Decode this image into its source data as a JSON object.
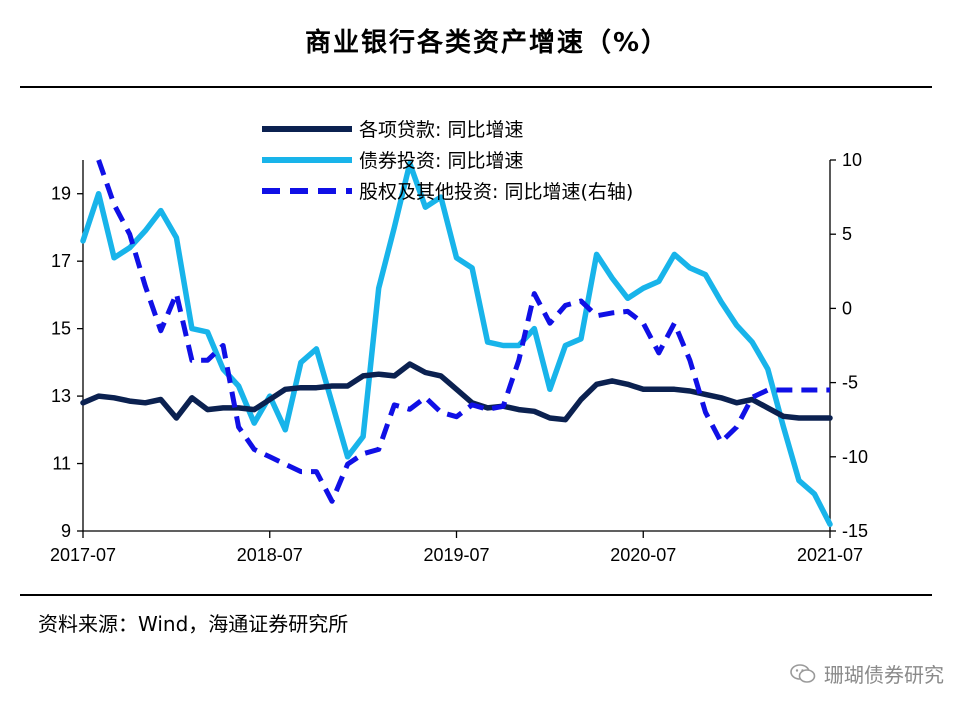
{
  "header": {
    "title": "商业银行各类资产增速（%）"
  },
  "footer": {
    "source": "资料来源：Wind，海通证券研究所",
    "watermark": "珊瑚债券研究"
  },
  "colors": {
    "loans": "#0b2150",
    "bonds": "#18b4ea",
    "equity": "#1010e6",
    "axis": "#000000"
  },
  "chart_data": {
    "type": "line",
    "title": "商业银行各类资产增速（%）",
    "xlabel": "",
    "ylabel": "",
    "x_ticks": [
      "2017-07",
      "2018-07",
      "2019-07",
      "2020-07",
      "2021-07"
    ],
    "x_range": [
      "2017-07",
      "2021-07"
    ],
    "ylim_left": [
      9,
      20
    ],
    "yticks_left": [
      "9",
      "11",
      "13",
      "15",
      "17",
      "19"
    ],
    "ylim_right": [
      -15,
      10
    ],
    "yticks_right": [
      "-15",
      "-10",
      "-5",
      "0",
      "5",
      "10"
    ],
    "legend_position": "top-center",
    "series": [
      {
        "name": "各项贷款: 同比增速",
        "axis": "left",
        "style": "solid",
        "color_key": "loans",
        "x": [
          0,
          1,
          2,
          3,
          4,
          5,
          6,
          7,
          8,
          9,
          10,
          11,
          12,
          13,
          14,
          15,
          16,
          17,
          18,
          19,
          20,
          21,
          22,
          23,
          24,
          25,
          26,
          27,
          28,
          29,
          30,
          31,
          32,
          33,
          34,
          35,
          36,
          37,
          38,
          39,
          40,
          41,
          42,
          43,
          44,
          45,
          46,
          47,
          48
        ],
        "values": [
          12.8,
          13.0,
          12.95,
          12.85,
          12.8,
          12.9,
          12.35,
          12.95,
          12.6,
          12.65,
          12.65,
          12.6,
          12.9,
          13.2,
          13.25,
          13.25,
          13.3,
          13.3,
          13.6,
          13.65,
          13.6,
          13.95,
          13.7,
          13.6,
          13.2,
          12.8,
          12.65,
          12.7,
          12.6,
          12.55,
          12.35,
          12.3,
          12.9,
          13.35,
          13.45,
          13.35,
          13.2,
          13.2,
          13.2,
          13.15,
          13.05,
          12.95,
          12.8,
          12.9,
          12.65,
          12.4,
          12.35,
          12.35,
          12.35
        ]
      },
      {
        "name": "债券投资: 同比增速",
        "axis": "left",
        "style": "solid",
        "color_key": "bonds",
        "x": [
          0,
          1,
          2,
          3,
          4,
          5,
          6,
          7,
          8,
          9,
          10,
          11,
          12,
          13,
          14,
          15,
          16,
          17,
          18,
          19,
          20,
          21,
          22,
          23,
          24,
          25,
          26,
          27,
          28,
          29,
          30,
          31,
          32,
          33,
          34,
          35,
          36,
          37,
          38,
          39,
          40,
          41,
          42,
          43,
          44,
          45,
          46,
          47,
          48
        ],
        "values": [
          17.6,
          19.0,
          17.1,
          17.4,
          17.9,
          18.5,
          17.7,
          15.0,
          14.9,
          13.8,
          13.3,
          12.2,
          13.0,
          12.0,
          14.0,
          14.4,
          12.8,
          11.2,
          11.8,
          16.2,
          18.0,
          19.9,
          18.6,
          18.9,
          17.1,
          16.8,
          14.6,
          14.5,
          14.5,
          15.0,
          13.2,
          14.5,
          14.7,
          17.2,
          16.5,
          15.9,
          16.2,
          16.4,
          17.2,
          16.8,
          16.6,
          15.8,
          15.1,
          14.6,
          13.8,
          12.1,
          10.5,
          10.1,
          9.2
        ]
      },
      {
        "name": "股权及其他投资: 同比增速(右轴)",
        "axis": "right",
        "style": "dashed",
        "color_key": "equity",
        "x": [
          1,
          2,
          3,
          4,
          5,
          6,
          7,
          8,
          9,
          10,
          11,
          12,
          13,
          14,
          15,
          16,
          17,
          18,
          19,
          20,
          21,
          22,
          23,
          24,
          25,
          26,
          27,
          28,
          29,
          30,
          31,
          32,
          33,
          34,
          35,
          36,
          37,
          38,
          39,
          40,
          41,
          42,
          43,
          44,
          45,
          46,
          47,
          48
        ],
        "values": [
          10.0,
          7.0,
          5.0,
          1.5,
          -1.5,
          1.0,
          -3.5,
          -3.5,
          -2.5,
          -8.0,
          -9.5,
          -10.0,
          -10.5,
          -11.0,
          -11.0,
          -13.0,
          -10.5,
          -9.8,
          -9.5,
          -6.5,
          -6.8,
          -6.0,
          -7.0,
          -7.3,
          -6.5,
          -6.8,
          -6.6,
          -3.5,
          1.0,
          -1.0,
          0.2,
          0.5,
          -0.5,
          -0.3,
          -0.2,
          -1.0,
          -3.0,
          -1.0,
          -3.5,
          -7.0,
          -9.0,
          -8.0,
          -6.0,
          -5.5,
          -5.5,
          -5.5,
          -5.5,
          -5.5
        ]
      }
    ]
  }
}
